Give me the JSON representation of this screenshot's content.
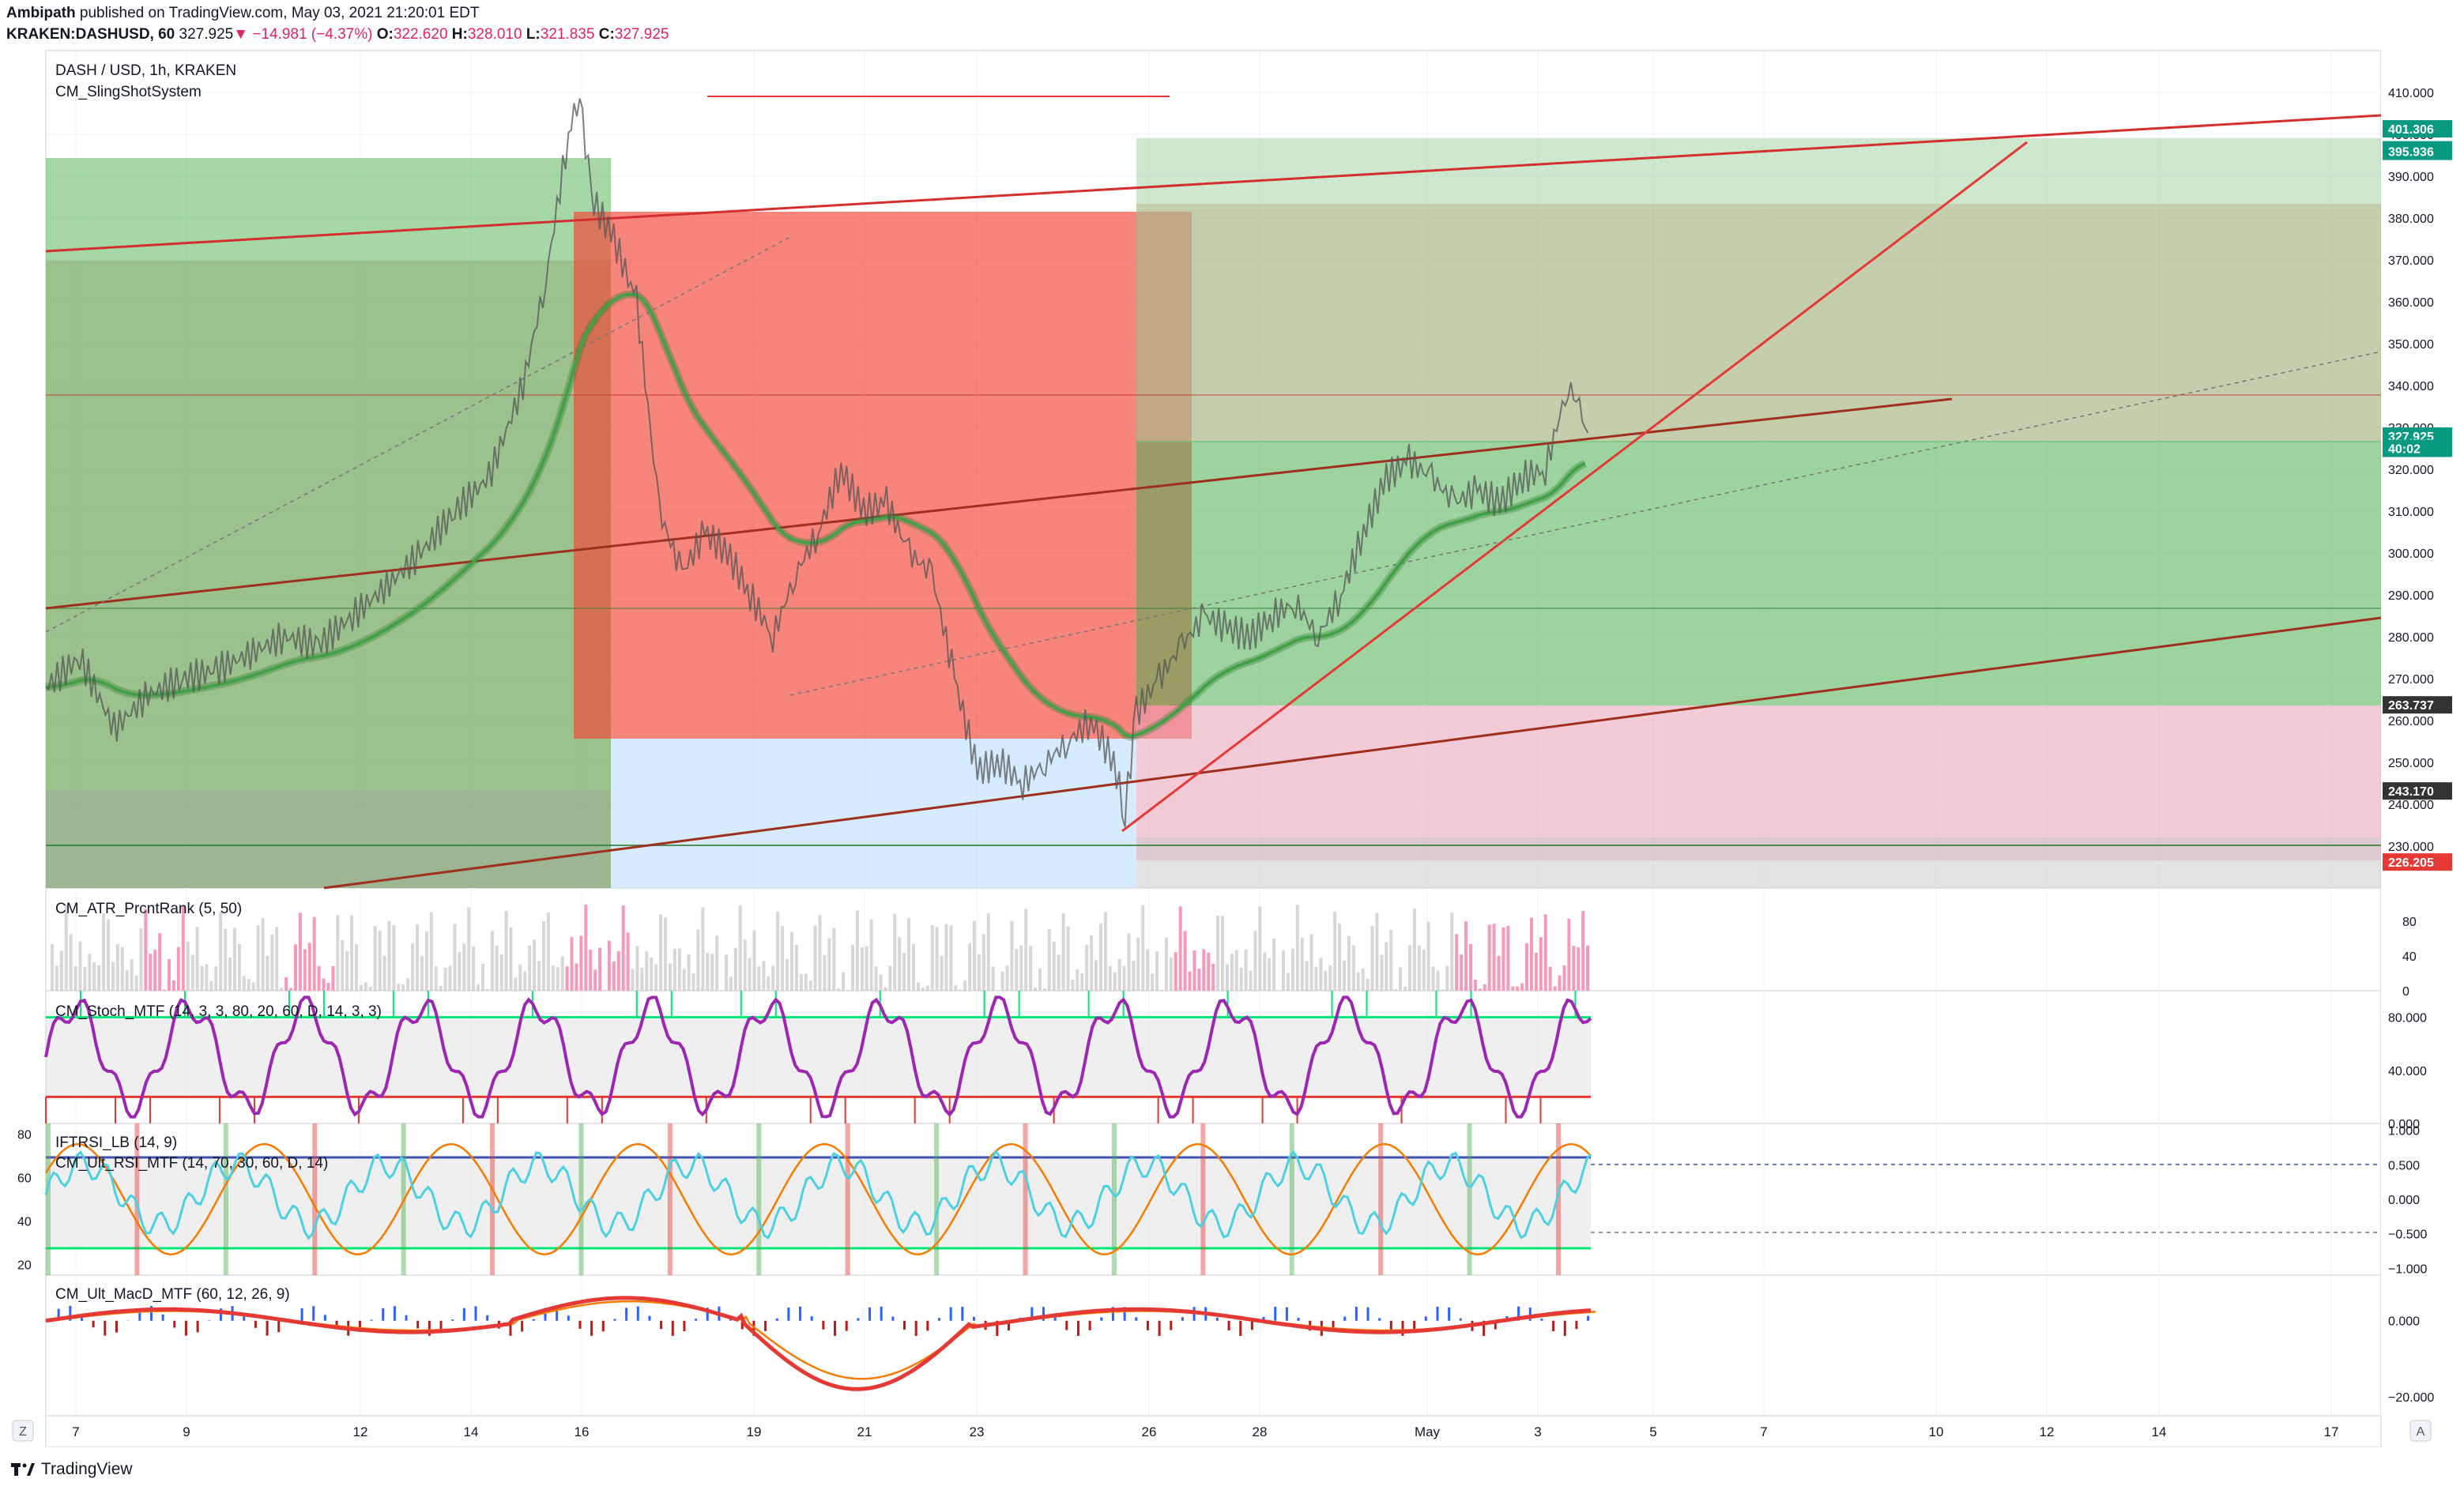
{
  "header": {
    "author": "Ambipath",
    "published_text": "published on TradingView.com, May 03, 2021 21:20:01 EDT",
    "symbol": "KRAKEN:DASHUSD, 60",
    "last": "327.925",
    "change": "−14.981 (−4.37%)",
    "open_label": "O:",
    "open": "322.620",
    "high_label": "H:",
    "high": "328.010",
    "low_label": "L:",
    "low": "321.835",
    "close_label": "C:",
    "close": "327.925"
  },
  "panes": {
    "main_title": "DASH / USD, 1h, KRAKEN",
    "main_indicator": "CM_SlingShotSystem",
    "atr": "CM_ATR_PrcntRank (5, 50)",
    "stoch": "CM_Stoch_MTF (14, 3, 3, 80, 20, 60, D, 14, 3, 3)",
    "iftrsi": "IFTRSI_LB (14, 9)",
    "ultrsi": "CM_Ult_RSI_MTF (14, 70, 30, 60, D, 14)",
    "macd": "CM_Ult_MacD_MTF (60, 12, 26, 9)"
  },
  "chart_data": {
    "type": "line",
    "title": "DASH / USD, 1h, KRAKEN",
    "x_ticks": [
      "7",
      "9",
      "12",
      "14",
      "16",
      "19",
      "21",
      "23",
      "26",
      "28",
      "May",
      "3",
      "5",
      "7",
      "10",
      "12",
      "14",
      "17"
    ],
    "price_axis": {
      "ticks": [
        "410.000",
        "400.000",
        "390.000",
        "380.000",
        "370.000",
        "360.000",
        "350.000",
        "340.000",
        "330.000",
        "320.000",
        "310.000",
        "300.000",
        "290.000",
        "280.000",
        "270.000",
        "260.000",
        "250.000",
        "240.000",
        "230.000"
      ],
      "ylim": [
        220,
        420
      ],
      "badges": [
        {
          "label": "401.306",
          "value": 401.306,
          "color": "#089981"
        },
        {
          "label": "396.302",
          "value": 396.302,
          "color": "#089981"
        },
        {
          "label": "395.936",
          "value": 395.936,
          "color": "#089981"
        },
        {
          "label": "327.925",
          "value": 327.925,
          "color": "#089981"
        },
        {
          "label": "40:02",
          "value": 325,
          "color": "#089981"
        },
        {
          "label": "263.737",
          "value": 263.737,
          "color": "#333333"
        },
        {
          "label": "243.170",
          "value": 243.17,
          "color": "#333333"
        },
        {
          "label": "226.205",
          "value": 226.205,
          "color": "#e53935"
        }
      ]
    },
    "price_path": [
      [
        0,
        268
      ],
      [
        3,
        275
      ],
      [
        6,
        258
      ],
      [
        9,
        266
      ],
      [
        12,
        270
      ],
      [
        15,
        272
      ],
      [
        18,
        276
      ],
      [
        21,
        280
      ],
      [
        24,
        278
      ],
      [
        27,
        285
      ],
      [
        30,
        292
      ],
      [
        33,
        300
      ],
      [
        36,
        310
      ],
      [
        39,
        318
      ],
      [
        42,
        340
      ],
      [
        44,
        365
      ],
      [
        46,
        400
      ],
      [
        47,
        410
      ],
      [
        48,
        385
      ],
      [
        50,
        375
      ],
      [
        52,
        360
      ],
      [
        54,
        310
      ],
      [
        56,
        295
      ],
      [
        58,
        305
      ],
      [
        60,
        300
      ],
      [
        62,
        290
      ],
      [
        64,
        280
      ],
      [
        66,
        295
      ],
      [
        68,
        305
      ],
      [
        70,
        320
      ],
      [
        72,
        310
      ],
      [
        74,
        312
      ],
      [
        76,
        300
      ],
      [
        78,
        295
      ],
      [
        80,
        270
      ],
      [
        82,
        248
      ],
      [
        84,
        250
      ],
      [
        86,
        245
      ],
      [
        88,
        250
      ],
      [
        90,
        255
      ],
      [
        92,
        260
      ],
      [
        94,
        250
      ],
      [
        95,
        238
      ],
      [
        96,
        262
      ],
      [
        98,
        270
      ],
      [
        100,
        278
      ],
      [
        102,
        285
      ],
      [
        104,
        282
      ],
      [
        106,
        280
      ],
      [
        108,
        285
      ],
      [
        110,
        288
      ],
      [
        112,
        280
      ],
      [
        114,
        290
      ],
      [
        116,
        305
      ],
      [
        118,
        318
      ],
      [
        120,
        322
      ],
      [
        122,
        318
      ],
      [
        124,
        312
      ],
      [
        126,
        315
      ],
      [
        128,
        312
      ],
      [
        130,
        318
      ],
      [
        132,
        320
      ],
      [
        134,
        340
      ],
      [
        135,
        335
      ],
      [
        136,
        325
      ]
    ],
    "atr_axis": {
      "ticks": [
        "80",
        "40",
        "0"
      ],
      "ylim": [
        0,
        100
      ]
    },
    "stoch_axis": {
      "ticks": [
        "80.000",
        "40.000",
        "0.000"
      ],
      "ylim": [
        0,
        100
      ],
      "upper": 80,
      "lower": 20
    },
    "rsi_axis_left": {
      "ticks": [
        "80",
        "60",
        "40",
        "20"
      ],
      "ylim": [
        15,
        85
      ],
      "upper": 70,
      "lower": 30
    },
    "iftrsi_axis_right": {
      "ticks": [
        "1.000",
        "0.500",
        "0.000",
        "−0.500",
        "−1.000"
      ],
      "ylim": [
        -1.1,
        1.1
      ]
    },
    "macd_axis": {
      "ticks": [
        "0.000",
        "−20.000"
      ],
      "ylim": [
        -25,
        12
      ]
    },
    "colors": {
      "green_zone": "#4caf50",
      "red_zone": "#f44336",
      "pink_zone": "#e8a0b4",
      "blue_zone": "#d6ecfb",
      "trend_line": "#d32f2f",
      "brown_line": "#a0301e",
      "stoch": "#9c27b0",
      "rsi": "#4dd0e1",
      "ifrsi": "#f57c00"
    }
  },
  "footer": {
    "brand": "TradingView",
    "axis_left_btn": "Z",
    "axis_right_btn": "A"
  }
}
